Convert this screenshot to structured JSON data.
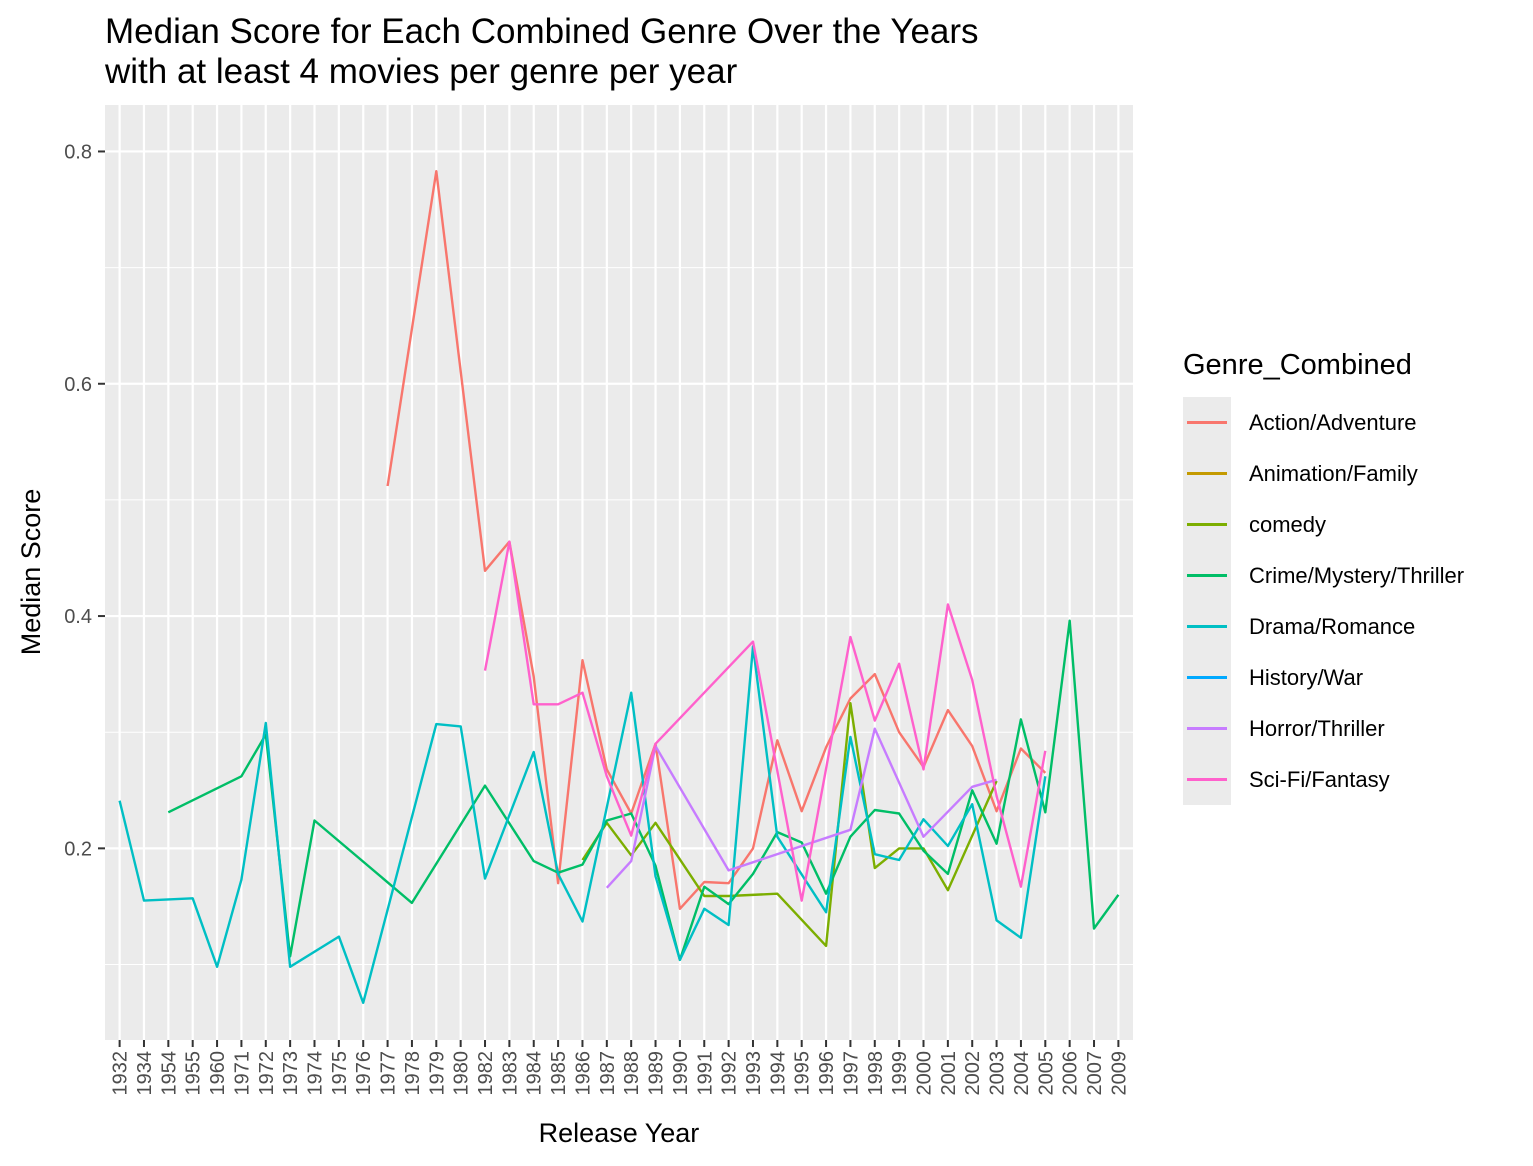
{
  "chart_data": {
    "type": "line",
    "title_lines": [
      "Median Score for Each Combined Genre Over the Years",
      "with at least 4 movies per genre per year"
    ],
    "xlabel": "Release Year",
    "ylabel": "Median Score",
    "categories": [
      "1932",
      "1934",
      "1954",
      "1955",
      "1960",
      "1971",
      "1972",
      "1973",
      "1974",
      "1975",
      "1976",
      "1977",
      "1978",
      "1979",
      "1980",
      "1982",
      "1983",
      "1984",
      "1985",
      "1986",
      "1987",
      "1988",
      "1989",
      "1990",
      "1991",
      "1992",
      "1993",
      "1994",
      "1995",
      "1996",
      "1997",
      "1998",
      "1999",
      "2000",
      "2001",
      "2002",
      "2003",
      "2004",
      "2005",
      "2006",
      "2007",
      "2009"
    ],
    "yticks": [
      0.2,
      0.4,
      0.6,
      0.8
    ],
    "ylim": [
      0.035,
      0.84
    ],
    "grid": true,
    "legend_title": "Genre_Combined",
    "legend_position": "right",
    "series": [
      {
        "name": "Action/Adventure",
        "color": "#F8766D",
        "points": [
          [
            "1977",
            0.512
          ],
          [
            "1979",
            0.783
          ],
          [
            "1982",
            0.439
          ],
          [
            "1983",
            0.464
          ],
          [
            "1984",
            0.348
          ],
          [
            "1985",
            0.17
          ],
          [
            "1986",
            0.362
          ],
          [
            "1987",
            0.268
          ],
          [
            "1988",
            0.23
          ],
          [
            "1989",
            0.29
          ],
          [
            "1990",
            0.148
          ],
          [
            "1991",
            0.171
          ],
          [
            "1992",
            0.17
          ],
          [
            "1993",
            0.2
          ],
          [
            "1994",
            0.293
          ],
          [
            "1995",
            0.232
          ],
          [
            "1996",
            0.287
          ],
          [
            "1997",
            0.329
          ],
          [
            "1998",
            0.35
          ],
          [
            "1999",
            0.3
          ],
          [
            "2000",
            0.27
          ],
          [
            "2001",
            0.319
          ],
          [
            "2002",
            0.288
          ],
          [
            "2003",
            0.232
          ],
          [
            "2004",
            0.286
          ],
          [
            "2005",
            0.265
          ]
        ]
      },
      {
        "name": "Animation/Family",
        "color": "#C49A00",
        "points": []
      },
      {
        "name": "comedy",
        "color": "#7CAE00",
        "points": [
          [
            "1986",
            0.19
          ],
          [
            "1987",
            0.222
          ],
          [
            "1988",
            0.194
          ],
          [
            "1989",
            0.222
          ],
          [
            "1991",
            0.159
          ],
          [
            "1992",
            0.159
          ],
          [
            "1994",
            0.161
          ],
          [
            "1996",
            0.116
          ],
          [
            "1997",
            0.325
          ],
          [
            "1998",
            0.183
          ],
          [
            "1999",
            0.2
          ],
          [
            "2000",
            0.2
          ],
          [
            "2001",
            0.164
          ],
          [
            "2003",
            0.258
          ]
        ]
      },
      {
        "name": "Crime/Mystery/Thriller",
        "color": "#00BE67",
        "points": [
          [
            "1954",
            0.231
          ],
          [
            "1971",
            0.262
          ],
          [
            "1972",
            0.298
          ],
          [
            "1973",
            0.107
          ],
          [
            "1974",
            0.224
          ],
          [
            "1978",
            0.153
          ],
          [
            "1982",
            0.254
          ],
          [
            "1984",
            0.189
          ],
          [
            "1985",
            0.179
          ],
          [
            "1986",
            0.186
          ],
          [
            "1987",
            0.224
          ],
          [
            "1988",
            0.23
          ],
          [
            "1989",
            0.185
          ],
          [
            "1990",
            0.104
          ],
          [
            "1991",
            0.167
          ],
          [
            "1992",
            0.152
          ],
          [
            "1993",
            0.178
          ],
          [
            "1994",
            0.214
          ],
          [
            "1995",
            0.205
          ],
          [
            "1996",
            0.161
          ],
          [
            "1997",
            0.21
          ],
          [
            "1998",
            0.233
          ],
          [
            "1999",
            0.23
          ],
          [
            "2000",
            0.198
          ],
          [
            "2001",
            0.178
          ],
          [
            "2002",
            0.25
          ],
          [
            "2003",
            0.204
          ],
          [
            "2004",
            0.311
          ],
          [
            "2005",
            0.231
          ],
          [
            "2006",
            0.396
          ],
          [
            "2007",
            0.131
          ],
          [
            "2009",
            0.16
          ]
        ]
      },
      {
        "name": "Drama/Romance",
        "color": "#00BFC4",
        "points": [
          [
            "1932",
            0.241
          ],
          [
            "1934",
            0.155
          ],
          [
            "1955",
            0.157
          ],
          [
            "1960",
            0.098
          ],
          [
            "1971",
            0.173
          ],
          [
            "1972",
            0.308
          ],
          [
            "1973",
            0.098
          ],
          [
            "1975",
            0.124
          ],
          [
            "1976",
            0.067
          ],
          [
            "1979",
            0.307
          ],
          [
            "1980",
            0.305
          ],
          [
            "1982",
            0.174
          ],
          [
            "1984",
            0.283
          ],
          [
            "1985",
            0.178
          ],
          [
            "1986",
            0.137
          ],
          [
            "1988",
            0.334
          ],
          [
            "1989",
            0.176
          ],
          [
            "1990",
            0.104
          ],
          [
            "1991",
            0.148
          ],
          [
            "1992",
            0.134
          ],
          [
            "1993",
            0.374
          ],
          [
            "1994",
            0.21
          ],
          [
            "1996",
            0.145
          ],
          [
            "1997",
            0.296
          ],
          [
            "1998",
            0.195
          ],
          [
            "1999",
            0.19
          ],
          [
            "2000",
            0.225
          ],
          [
            "2001",
            0.202
          ],
          [
            "2002",
            0.238
          ],
          [
            "2003",
            0.138
          ],
          [
            "2004",
            0.123
          ],
          [
            "2005",
            0.262
          ]
        ]
      },
      {
        "name": "History/War",
        "color": "#00A9FF",
        "points": []
      },
      {
        "name": "Horror/Thriller",
        "color": "#C77CFF",
        "points": [
          [
            "1987",
            0.166
          ],
          [
            "1988",
            0.189
          ],
          [
            "1989",
            0.288
          ],
          [
            "1992",
            0.181
          ],
          [
            "1997",
            0.216
          ],
          [
            "1998",
            0.303
          ],
          [
            "2000",
            0.21
          ],
          [
            "2002",
            0.253
          ],
          [
            "2003",
            0.259
          ]
        ]
      },
      {
        "name": "Sci-Fi/Fantasy",
        "color": "#FF61CC",
        "points": [
          [
            "1982",
            0.353
          ],
          [
            "1983",
            0.464
          ],
          [
            "1984",
            0.324
          ],
          [
            "1985",
            0.324
          ],
          [
            "1986",
            0.334
          ],
          [
            "1987",
            0.262
          ],
          [
            "1988",
            0.211
          ],
          [
            "1989",
            0.29
          ],
          [
            "1993",
            0.378
          ],
          [
            "1995",
            0.155
          ],
          [
            "1997",
            0.382
          ],
          [
            "1998",
            0.31
          ],
          [
            "1999",
            0.359
          ],
          [
            "2000",
            0.268
          ],
          [
            "2001",
            0.41
          ],
          [
            "2002",
            0.345
          ],
          [
            "2003",
            0.245
          ],
          [
            "2004",
            0.167
          ],
          [
            "2005",
            0.284
          ]
        ]
      }
    ]
  }
}
